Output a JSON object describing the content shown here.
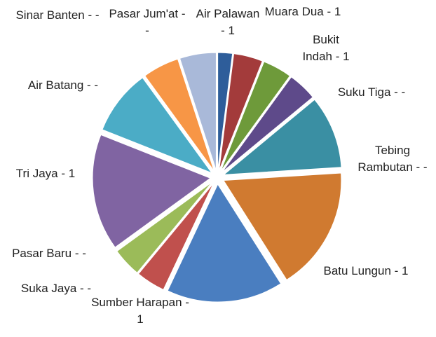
{
  "chart_data": {
    "type": "pie",
    "categories": [
      "Air Palawan",
      "Muara Dua",
      "Bukit Indah",
      "Suku Tiga",
      "Tebing Rambutan",
      "Batu Lungun",
      "Sumber Harapan",
      "Suka Jaya",
      "Pasar Baru",
      "Tri Jaya",
      "Air Batang",
      "Sinar Banten",
      "Pasar Jum'at"
    ],
    "values": [
      2,
      4,
      4,
      4,
      10,
      17,
      16,
      4,
      4,
      16,
      9,
      5,
      5
    ],
    "data_labels": [
      "Air Palawan - 1",
      "Muara Dua - 1",
      "Bukit Indah - 1",
      "Suku Tiga - -",
      "Tebing Rambutan - -",
      "Batu Lungun - 1",
      "Sumber Harapan - 1",
      "Suka Jaya - -",
      "Pasar Baru - -",
      "Tri Jaya - 1",
      "Air Batang - -",
      "Sinar Banten - -",
      "Pasar Jum'at - -"
    ],
    "colors": [
      "#2e5d9a",
      "#a33b3b",
      "#6e9a3a",
      "#5e4a8a",
      "#3a8fa3",
      "#d07a30",
      "#4a7ec0",
      "#c0504d",
      "#9bbb59",
      "#8064a2",
      "#4bacc6",
      "#f79646",
      "#a9b9d9"
    ],
    "exploded": true
  }
}
